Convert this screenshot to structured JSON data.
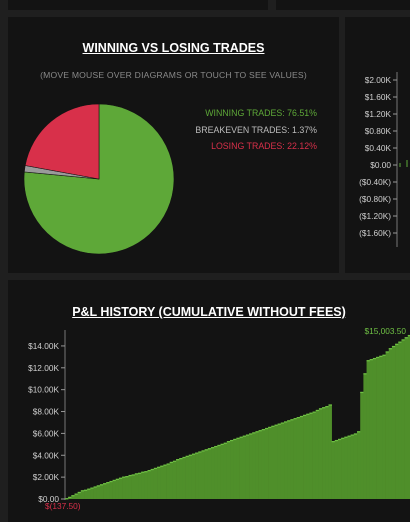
{
  "pie_panel": {
    "title": "WINNING VS LOSING TRADES",
    "subtitle": "(MOVE MOUSE OVER DIAGRAMS OR TOUCH TO SEE VALUES)",
    "legend": [
      {
        "label": "WINNING TRADES: 76.51%",
        "color": "#5ea838"
      },
      {
        "label": "BREAKEVEN TRADES: 1.37%",
        "color": "#bdbdbd"
      },
      {
        "label": "LOSING TRADES: 22.12%",
        "color": "#d8304a"
      }
    ]
  },
  "right_axis": {
    "ticks": [
      "$2.00K",
      "$1.60K",
      "$1.20K",
      "$0.80K",
      "$0.40K",
      "$0.00",
      "($0.40K)",
      "($0.80K)",
      "($1.20K)",
      "($1.60K)"
    ]
  },
  "pnl_panel": {
    "title": "P&L HISTORY (CUMULATIVE WITHOUT FEES)",
    "end_label": "$15,003.50",
    "start_label": "$(137.50)"
  },
  "colors": {
    "win": "#5ea838",
    "breakeven": "#9a9a9a",
    "loss": "#d8304a",
    "bar": "#4f8f2a",
    "bar_edge": "#6fc044"
  },
  "chart_data": [
    {
      "type": "pie",
      "title": "WINNING VS LOSING TRADES",
      "slices": [
        {
          "label": "WINNING TRADES",
          "value": 76.51
        },
        {
          "label": "BREAKEVEN TRADES",
          "value": 1.37
        },
        {
          "label": "LOSING TRADES",
          "value": 22.12
        }
      ]
    },
    {
      "type": "bar",
      "title": "P&L HISTORY (CUMULATIVE WITHOUT FEES)",
      "ylim": [
        0,
        15000
      ],
      "yticks": [
        "$0.00",
        "$2.00K",
        "$4.00K",
        "$6.00K",
        "$8.00K",
        "$10.00K",
        "$12.00K",
        "$14.00K"
      ],
      "ytick_values": [
        0,
        2000,
        4000,
        6000,
        8000,
        10000,
        12000,
        14000
      ],
      "values": [
        -137.5,
        200,
        350,
        500,
        650,
        800,
        850,
        950,
        1050,
        1150,
        1250,
        1350,
        1450,
        1550,
        1650,
        1750,
        1850,
        1950,
        2050,
        2100,
        2200,
        2250,
        2350,
        2400,
        2500,
        2550,
        2650,
        2750,
        2850,
        2950,
        3050,
        3150,
        3250,
        3400,
        3500,
        3650,
        3750,
        3850,
        3950,
        4050,
        4150,
        4250,
        4350,
        4450,
        4550,
        4650,
        4750,
        4850,
        4950,
        5050,
        5150,
        5300,
        5400,
        5500,
        5600,
        5700,
        5800,
        5900,
        6000,
        6100,
        6200,
        6300,
        6400,
        6500,
        6600,
        6700,
        6800,
        6900,
        7000,
        7100,
        7200,
        7300,
        7400,
        7500,
        7600,
        7700,
        7800,
        7900,
        8000,
        8150,
        8300,
        8400,
        8500,
        8650,
        5300,
        5400,
        5500,
        5600,
        5700,
        5800,
        5900,
        6000,
        6200,
        9800,
        11500,
        12700,
        12800,
        12900,
        13000,
        13100,
        13200,
        13500,
        13800,
        14000,
        14200,
        14400,
        14600,
        14800,
        15003.5
      ]
    }
  ]
}
